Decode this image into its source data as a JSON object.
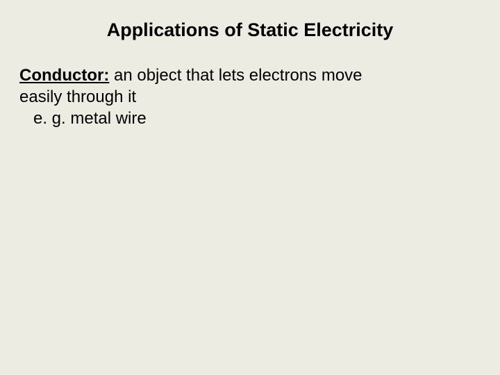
{
  "slide": {
    "title": "Applications of Static Electricity",
    "term": "Conductor:",
    "definition_part1": " an object that lets electrons move",
    "definition_part2": "easily through it",
    "example": "e. g. metal wire"
  },
  "style": {
    "background_color": "#edece2",
    "text_color": "#000000",
    "title_fontsize": 27,
    "body_fontsize": 24,
    "font_family": "Arial"
  }
}
